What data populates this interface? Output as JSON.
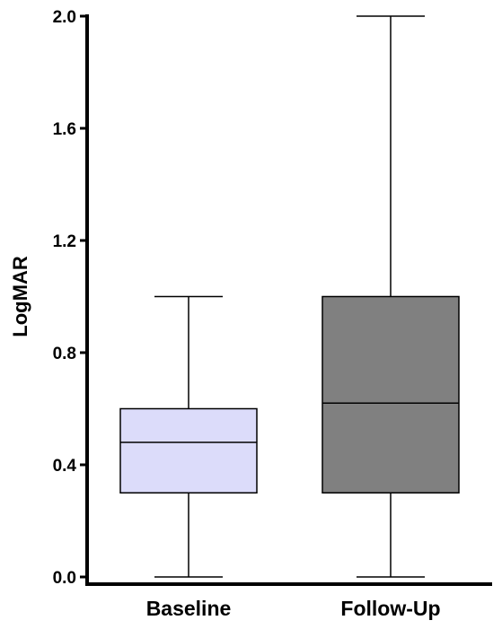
{
  "chart_data": {
    "type": "box",
    "title": "",
    "xlabel": "",
    "ylabel": "LogMAR",
    "ylim": [
      0.0,
      2.0
    ],
    "yticks": [
      0.0,
      0.4,
      0.8,
      1.2,
      1.6,
      2.0
    ],
    "ytick_labels": [
      "0.0",
      "0.4",
      "0.8",
      "1.2",
      "1.6",
      "2.0"
    ],
    "grid": false,
    "legend": "none",
    "categories": [
      "Baseline",
      "Follow-Up"
    ],
    "boxes": [
      {
        "category": "Baseline",
        "min": 0.0,
        "q1": 0.3,
        "median": 0.48,
        "q3": 0.6,
        "max": 1.0,
        "color": "#dcdcfa"
      },
      {
        "category": "Follow-Up",
        "min": 0.0,
        "q1": 0.3,
        "median": 0.62,
        "q3": 1.0,
        "max": 2.0,
        "color": "#808080"
      }
    ],
    "axis_color": "#000000"
  }
}
